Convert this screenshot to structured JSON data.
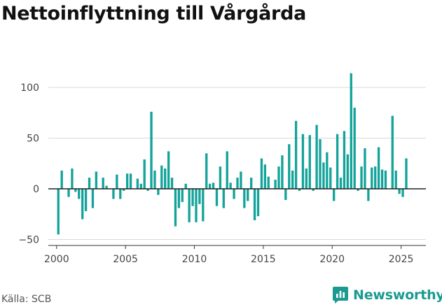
{
  "title": "Nettoinflyttning till Vårgårda",
  "source": "Källa: SCB",
  "brand": "Newsworthy",
  "colors": {
    "bar": "#14a39a",
    "brand": "#1b9a90",
    "grid": "#d9d9d9",
    "zero_line": "#222222"
  },
  "chart_data": {
    "type": "bar",
    "title": "Nettoinflyttning till Vårgårda",
    "xlabel": "",
    "ylabel": "",
    "ylim": [
      -52,
      118
    ],
    "yticks": [
      -50,
      0,
      50,
      100
    ],
    "xticks": [
      2000,
      2005,
      2010,
      2015,
      2020,
      2025
    ],
    "xlim": [
      1999.4,
      2026.8
    ],
    "grid": true,
    "series": [
      {
        "x": [
          2000.125,
          2000.375,
          2000.625,
          2000.875,
          2001.125,
          2001.375,
          2001.625,
          2001.875,
          2002.125,
          2002.375,
          2002.625,
          2002.875,
          2003.125,
          2003.375,
          2003.625,
          2003.875,
          2004.125,
          2004.375,
          2004.625,
          2004.875,
          2005.125,
          2005.375,
          2005.625,
          2005.875,
          2006.125,
          2006.375,
          2006.625,
          2006.875,
          2007.125,
          2007.375,
          2007.625,
          2007.875,
          2008.125,
          2008.375,
          2008.625,
          2008.875,
          2009.125,
          2009.375,
          2009.625,
          2009.875,
          2010.125,
          2010.375,
          2010.625,
          2010.875,
          2011.125,
          2011.375,
          2011.625,
          2011.875,
          2012.125,
          2012.375,
          2012.625,
          2012.875,
          2013.125,
          2013.375,
          2013.625,
          2013.875,
          2014.125,
          2014.375,
          2014.625,
          2014.875,
          2015.125,
          2015.375,
          2015.625,
          2015.875,
          2016.125,
          2016.375,
          2016.625,
          2016.875,
          2017.125,
          2017.375,
          2017.625,
          2017.875,
          2018.125,
          2018.375,
          2018.625,
          2018.875,
          2019.125,
          2019.375,
          2019.625,
          2019.875,
          2020.125,
          2020.375,
          2020.625,
          2020.875,
          2021.125,
          2021.375,
          2021.625,
          2021.875,
          2022.125,
          2022.375,
          2022.625,
          2022.875,
          2023.125,
          2023.375,
          2023.625,
          2023.875,
          2024.125,
          2024.375,
          2024.625,
          2024.875,
          2025.125,
          2025.375
        ],
        "values": [
          -45,
          18,
          0,
          -8,
          20,
          -3,
          -10,
          -30,
          -22,
          11,
          -19,
          17,
          0,
          11,
          3,
          0,
          -10,
          14,
          -10,
          -2,
          15,
          15,
          0,
          10,
          5,
          29,
          -2,
          76,
          18,
          -6,
          23,
          20,
          37,
          11,
          -37,
          -19,
          -13,
          5,
          -33,
          -17,
          -33,
          -15,
          -32,
          35,
          5,
          6,
          -17,
          22,
          -19,
          37,
          6,
          -10,
          11,
          17,
          -19,
          -12,
          11,
          -31,
          -27,
          30,
          24,
          12,
          0,
          9,
          22,
          33,
          -11,
          44,
          18,
          67,
          -2,
          54,
          20,
          53,
          -2,
          63,
          49,
          26,
          36,
          21,
          -12,
          54,
          11,
          57,
          34,
          114,
          80,
          -2,
          22,
          40,
          -12,
          21,
          22,
          41,
          19,
          18,
          0,
          72,
          18,
          -5,
          -8,
          30
        ]
      }
    ]
  }
}
